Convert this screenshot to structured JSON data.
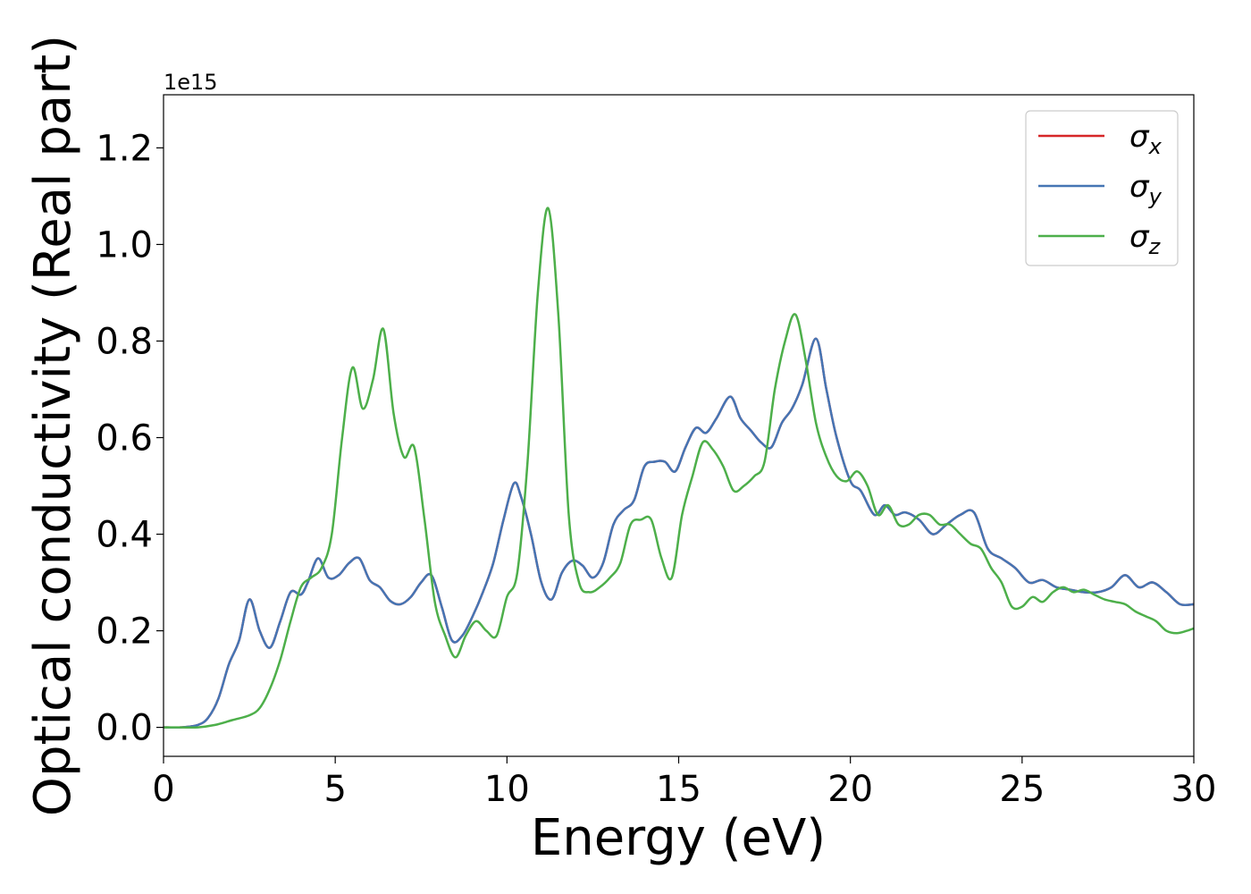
{
  "chart_data": {
    "type": "line",
    "xlabel": "Energy (eV)",
    "ylabel": "Optical conductivity (Real part)",
    "y_offset_text": "1e15",
    "xlim": [
      0,
      30
    ],
    "ylim": [
      -0.06,
      1.31
    ],
    "x_ticks": [
      0,
      5,
      10,
      15,
      20,
      25,
      30
    ],
    "x_tick_labels": [
      "0",
      "5",
      "10",
      "15",
      "20",
      "25",
      "30"
    ],
    "y_ticks": [
      0.0,
      0.2,
      0.4,
      0.6,
      0.8,
      1.0,
      1.2
    ],
    "y_tick_labels": [
      "0.0",
      "0.2",
      "0.4",
      "0.6",
      "0.8",
      "1.0",
      "1.2"
    ],
    "grid": false,
    "legend_position": "top-right",
    "legend": [
      {
        "base": "σ",
        "sub": "x",
        "color": "#d62728"
      },
      {
        "base": "σ",
        "sub": "y",
        "color": "#4575b4"
      },
      {
        "base": "σ",
        "sub": "z",
        "color": "#4daf4a"
      }
    ],
    "series": [
      {
        "name": "σx",
        "color": "#d62728",
        "x": [
          0,
          0.5,
          1.0,
          1.3,
          1.6,
          1.9,
          2.2,
          2.5,
          2.8,
          3.1,
          3.4,
          3.7,
          4.0,
          4.2,
          4.5,
          4.8,
          5.1,
          5.4,
          5.7,
          6.0,
          6.3,
          6.6,
          6.9,
          7.2,
          7.5,
          7.8,
          8.1,
          8.4,
          8.7,
          9.0,
          9.3,
          9.6,
          9.9,
          10.2,
          10.4,
          10.7,
          11.0,
          11.3,
          11.6,
          11.9,
          12.2,
          12.5,
          12.8,
          13.1,
          13.4,
          13.7,
          14.0,
          14.3,
          14.6,
          14.9,
          15.2,
          15.5,
          15.8,
          16.1,
          16.5,
          16.8,
          17.1,
          17.4,
          17.7,
          18.0,
          18.3,
          18.6,
          19.0,
          19.3,
          19.6,
          20.0,
          20.3,
          20.7,
          21.0,
          21.3,
          21.6,
          22.0,
          22.4,
          22.8,
          23.2,
          23.6,
          24.0,
          24.4,
          24.8,
          25.2,
          25.6,
          26.0,
          26.4,
          26.8,
          27.2,
          27.6,
          28.0,
          28.4,
          28.8,
          29.2,
          29.6,
          30.0
        ],
        "values": [
          0.0,
          0.0,
          0.005,
          0.02,
          0.06,
          0.13,
          0.18,
          0.265,
          0.2,
          0.165,
          0.22,
          0.28,
          0.275,
          0.3,
          0.35,
          0.31,
          0.315,
          0.34,
          0.35,
          0.305,
          0.29,
          0.262,
          0.255,
          0.27,
          0.3,
          0.315,
          0.25,
          0.18,
          0.19,
          0.23,
          0.28,
          0.34,
          0.43,
          0.505,
          0.48,
          0.4,
          0.3,
          0.265,
          0.32,
          0.345,
          0.335,
          0.31,
          0.34,
          0.42,
          0.45,
          0.47,
          0.54,
          0.55,
          0.55,
          0.53,
          0.58,
          0.62,
          0.61,
          0.64,
          0.685,
          0.64,
          0.615,
          0.59,
          0.58,
          0.63,
          0.66,
          0.71,
          0.805,
          0.7,
          0.6,
          0.51,
          0.49,
          0.44,
          0.46,
          0.44,
          0.445,
          0.43,
          0.4,
          0.42,
          0.44,
          0.445,
          0.37,
          0.35,
          0.33,
          0.3,
          0.305,
          0.29,
          0.285,
          0.28,
          0.28,
          0.29,
          0.315,
          0.29,
          0.3,
          0.28,
          0.255,
          0.255
        ]
      },
      {
        "name": "σy",
        "color": "#4575b4",
        "x": [
          0,
          0.5,
          1.0,
          1.3,
          1.6,
          1.9,
          2.2,
          2.5,
          2.8,
          3.1,
          3.4,
          3.7,
          4.0,
          4.2,
          4.5,
          4.8,
          5.1,
          5.4,
          5.7,
          6.0,
          6.3,
          6.6,
          6.9,
          7.2,
          7.5,
          7.8,
          8.1,
          8.4,
          8.7,
          9.0,
          9.3,
          9.6,
          9.9,
          10.2,
          10.4,
          10.7,
          11.0,
          11.3,
          11.6,
          11.9,
          12.2,
          12.5,
          12.8,
          13.1,
          13.4,
          13.7,
          14.0,
          14.3,
          14.6,
          14.9,
          15.2,
          15.5,
          15.8,
          16.1,
          16.5,
          16.8,
          17.1,
          17.4,
          17.7,
          18.0,
          18.3,
          18.6,
          19.0,
          19.3,
          19.6,
          20.0,
          20.3,
          20.7,
          21.0,
          21.3,
          21.6,
          22.0,
          22.4,
          22.8,
          23.2,
          23.6,
          24.0,
          24.4,
          24.8,
          25.2,
          25.6,
          26.0,
          26.4,
          26.8,
          27.2,
          27.6,
          28.0,
          28.4,
          28.8,
          29.2,
          29.6,
          30.0
        ],
        "values": [
          0.0,
          0.0,
          0.005,
          0.02,
          0.06,
          0.13,
          0.18,
          0.265,
          0.2,
          0.165,
          0.22,
          0.28,
          0.275,
          0.3,
          0.35,
          0.31,
          0.315,
          0.34,
          0.35,
          0.305,
          0.29,
          0.262,
          0.255,
          0.27,
          0.3,
          0.315,
          0.25,
          0.18,
          0.19,
          0.23,
          0.28,
          0.34,
          0.43,
          0.505,
          0.48,
          0.4,
          0.3,
          0.265,
          0.32,
          0.345,
          0.335,
          0.31,
          0.34,
          0.42,
          0.45,
          0.47,
          0.54,
          0.55,
          0.55,
          0.53,
          0.58,
          0.62,
          0.61,
          0.64,
          0.685,
          0.64,
          0.615,
          0.59,
          0.58,
          0.63,
          0.66,
          0.71,
          0.805,
          0.7,
          0.6,
          0.51,
          0.49,
          0.44,
          0.46,
          0.44,
          0.445,
          0.43,
          0.4,
          0.42,
          0.44,
          0.445,
          0.37,
          0.35,
          0.33,
          0.3,
          0.305,
          0.29,
          0.285,
          0.28,
          0.28,
          0.29,
          0.315,
          0.29,
          0.3,
          0.28,
          0.255,
          0.255
        ]
      },
      {
        "name": "σz",
        "color": "#4daf4a",
        "x": [
          0,
          0.5,
          1.0,
          1.5,
          2.0,
          2.5,
          2.8,
          3.1,
          3.4,
          3.7,
          4.0,
          4.3,
          4.6,
          4.9,
          5.2,
          5.5,
          5.8,
          6.1,
          6.4,
          6.7,
          7.0,
          7.3,
          7.6,
          7.9,
          8.2,
          8.5,
          8.8,
          9.1,
          9.4,
          9.7,
          10.0,
          10.3,
          10.6,
          10.9,
          11.2,
          11.5,
          11.8,
          12.1,
          12.4,
          12.7,
          13.0,
          13.3,
          13.6,
          13.9,
          14.2,
          14.5,
          14.8,
          15.1,
          15.4,
          15.7,
          16.0,
          16.3,
          16.6,
          16.9,
          17.2,
          17.5,
          17.8,
          18.1,
          18.4,
          18.7,
          19.0,
          19.3,
          19.6,
          19.9,
          20.2,
          20.5,
          20.8,
          21.1,
          21.4,
          21.7,
          22.0,
          22.3,
          22.6,
          22.9,
          23.2,
          23.5,
          23.8,
          24.1,
          24.4,
          24.7,
          25.0,
          25.3,
          25.6,
          25.9,
          26.2,
          26.5,
          26.8,
          27.1,
          27.4,
          27.7,
          28.0,
          28.3,
          28.6,
          28.9,
          29.2,
          29.5,
          29.8,
          30.0
        ],
        "values": [
          0.0,
          0.0,
          0.0,
          0.005,
          0.015,
          0.025,
          0.04,
          0.08,
          0.14,
          0.22,
          0.29,
          0.31,
          0.33,
          0.4,
          0.6,
          0.745,
          0.66,
          0.72,
          0.825,
          0.65,
          0.56,
          0.58,
          0.43,
          0.26,
          0.19,
          0.145,
          0.19,
          0.22,
          0.2,
          0.19,
          0.27,
          0.32,
          0.55,
          0.9,
          1.075,
          0.85,
          0.44,
          0.3,
          0.28,
          0.29,
          0.31,
          0.34,
          0.42,
          0.43,
          0.43,
          0.35,
          0.31,
          0.44,
          0.52,
          0.59,
          0.575,
          0.54,
          0.49,
          0.5,
          0.52,
          0.55,
          0.7,
          0.8,
          0.855,
          0.76,
          0.63,
          0.56,
          0.52,
          0.51,
          0.53,
          0.5,
          0.44,
          0.46,
          0.42,
          0.42,
          0.44,
          0.44,
          0.42,
          0.42,
          0.4,
          0.38,
          0.37,
          0.33,
          0.3,
          0.25,
          0.25,
          0.27,
          0.26,
          0.28,
          0.29,
          0.28,
          0.285,
          0.275,
          0.265,
          0.26,
          0.255,
          0.24,
          0.23,
          0.22,
          0.2,
          0.195,
          0.2,
          0.205
        ]
      }
    ]
  }
}
